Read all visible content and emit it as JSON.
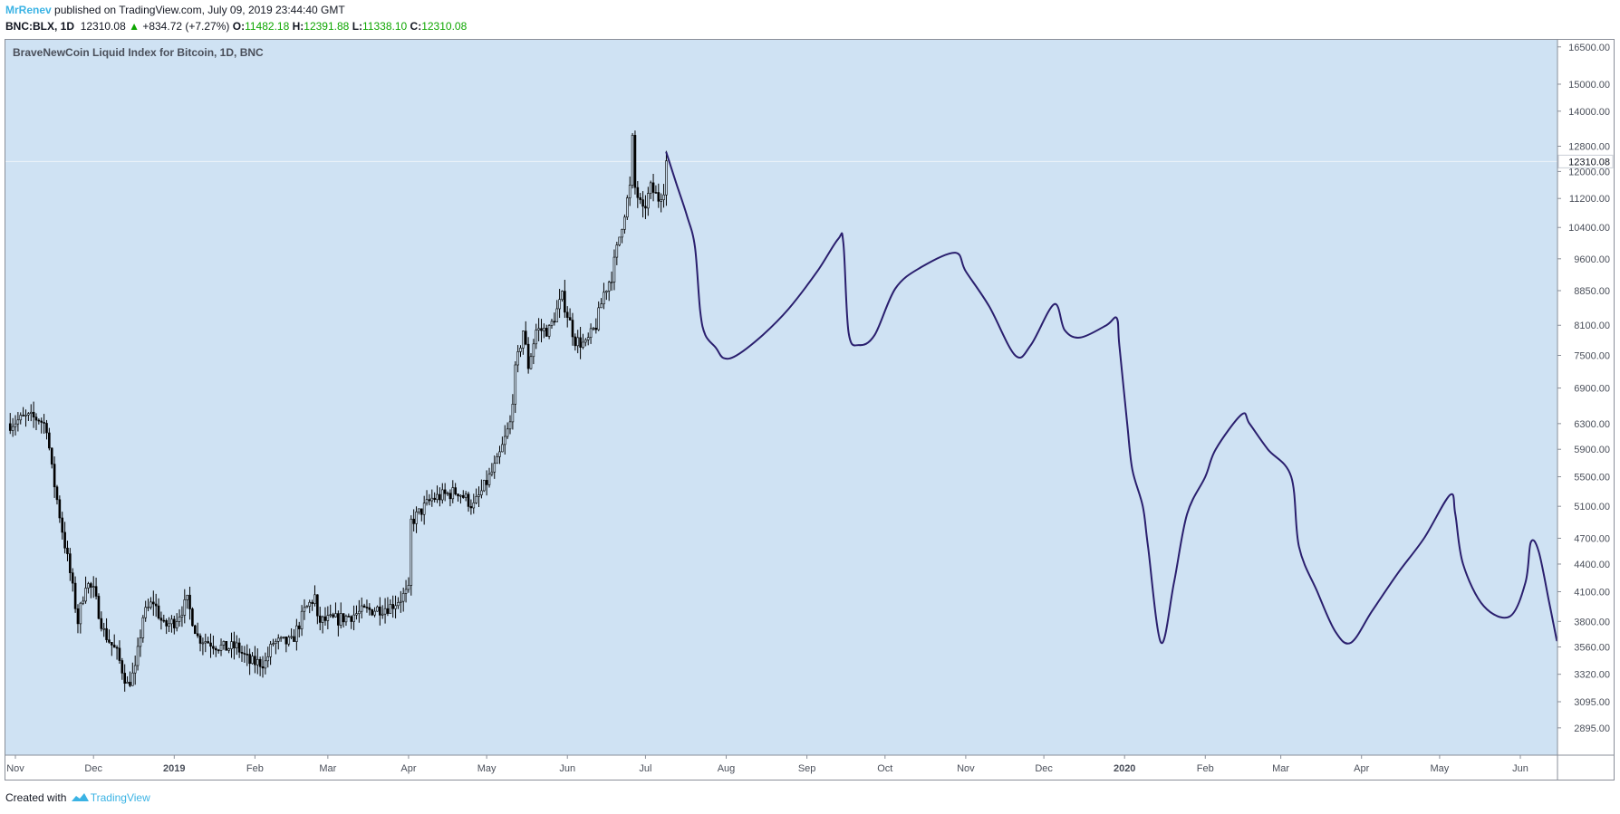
{
  "header": {
    "author": "MrRenev",
    "published_text": "published on TradingView.com, July 09, 2019 23:44:40 GMT",
    "symbol": "BNC:BLX, 1D",
    "last_price": "12310.08",
    "change": "+834.72 (+7.27%)",
    "open_label": "O:",
    "open": "11482.18",
    "high_label": "H:",
    "high": "12391.88",
    "low_label": "L:",
    "low": "11338.10",
    "close_label": "C:",
    "close": "12310.08"
  },
  "footer": {
    "created_with": "Created with",
    "brand": "TradingView",
    "logo_icon": "tradingview-cloud-icon"
  },
  "colors": {
    "chart_background": "#cfe2f3",
    "candle": "#000000",
    "projection_line": "#2a1f6e",
    "up_text": "#0ea600",
    "author": "#3bb3e4"
  },
  "chart_data": {
    "type": "line",
    "title": "BraveNewCoin Liquid Index for Bitcoin, 1D, BNC",
    "scale": "log",
    "ylim": [
      2700,
      16800
    ],
    "y_ticks": [
      "16500.00",
      "15000.00",
      "14000.00",
      "12800.00",
      "12000.00",
      "11200.00",
      "10400.00",
      "9600.00",
      "8850.00",
      "8100.00",
      "7500.00",
      "6900.00",
      "6300.00",
      "5900.00",
      "5500.00",
      "5100.00",
      "4700.00",
      "4400.00",
      "4100.00",
      "3800.00",
      "3560.00",
      "3320.00",
      "3095.00",
      "2895.00"
    ],
    "last_price_label": "12310.08",
    "x_ticks": [
      {
        "label": "Nov",
        "date": "2018-11-01"
      },
      {
        "label": "Dec",
        "date": "2018-12-01"
      },
      {
        "label": "2019",
        "date": "2019-01-01",
        "bold": true
      },
      {
        "label": "Feb",
        "date": "2019-02-01"
      },
      {
        "label": "Mar",
        "date": "2019-03-01"
      },
      {
        "label": "Apr",
        "date": "2019-04-01"
      },
      {
        "label": "May",
        "date": "2019-05-01"
      },
      {
        "label": "Jun",
        "date": "2019-06-01"
      },
      {
        "label": "Jul",
        "date": "2019-07-01"
      },
      {
        "label": "Aug",
        "date": "2019-08-01"
      },
      {
        "label": "Sep",
        "date": "2019-09-01"
      },
      {
        "label": "Oct",
        "date": "2019-10-01"
      },
      {
        "label": "Nov",
        "date": "2019-11-01"
      },
      {
        "label": "Dec",
        "date": "2019-12-01"
      },
      {
        "label": "2020",
        "date": "2020-01-01",
        "bold": true
      },
      {
        "label": "Feb",
        "date": "2020-02-01"
      },
      {
        "label": "Mar",
        "date": "2020-03-01"
      },
      {
        "label": "Apr",
        "date": "2020-04-01"
      },
      {
        "label": "May",
        "date": "2020-05-01"
      },
      {
        "label": "Jun",
        "date": "2020-06-01"
      }
    ],
    "series": [
      {
        "type": "candlestick",
        "approximate_path": [
          [
            "2018-10-30",
            6300
          ],
          [
            "2018-11-05",
            6400
          ],
          [
            "2018-11-10",
            6380
          ],
          [
            "2018-11-13",
            6250
          ],
          [
            "2018-11-15",
            5600
          ],
          [
            "2018-11-19",
            4800
          ],
          [
            "2018-11-22",
            4300
          ],
          [
            "2018-11-25",
            3800
          ],
          [
            "2018-11-28",
            4200
          ],
          [
            "2018-12-01",
            4100
          ],
          [
            "2018-12-05",
            3700
          ],
          [
            "2018-12-10",
            3500
          ],
          [
            "2018-12-14",
            3230
          ],
          [
            "2018-12-17",
            3350
          ],
          [
            "2018-12-20",
            3850
          ],
          [
            "2018-12-24",
            4000
          ],
          [
            "2018-12-28",
            3750
          ],
          [
            "2019-01-01",
            3800
          ],
          [
            "2019-01-06",
            4000
          ],
          [
            "2019-01-10",
            3650
          ],
          [
            "2019-01-15",
            3600
          ],
          [
            "2019-01-20",
            3550
          ],
          [
            "2019-01-25",
            3560
          ],
          [
            "2019-01-30",
            3420
          ],
          [
            "2019-02-05",
            3420
          ],
          [
            "2019-02-08",
            3600
          ],
          [
            "2019-02-15",
            3600
          ],
          [
            "2019-02-20",
            3900
          ],
          [
            "2019-02-24",
            4050
          ],
          [
            "2019-02-25",
            3800
          ],
          [
            "2019-03-05",
            3820
          ],
          [
            "2019-03-15",
            3900
          ],
          [
            "2019-03-25",
            3950
          ],
          [
            "2019-04-01",
            4100
          ],
          [
            "2019-04-02",
            4900
          ],
          [
            "2019-04-10",
            5200
          ],
          [
            "2019-04-20",
            5300
          ],
          [
            "2019-04-26",
            5100
          ],
          [
            "2019-05-05",
            5700
          ],
          [
            "2019-05-10",
            6300
          ],
          [
            "2019-05-12",
            7200
          ],
          [
            "2019-05-15",
            8000
          ],
          [
            "2019-05-17",
            7300
          ],
          [
            "2019-05-20",
            8000
          ],
          [
            "2019-05-25",
            8000
          ],
          [
            "2019-05-30",
            8700
          ],
          [
            "2019-06-04",
            7800
          ],
          [
            "2019-06-08",
            7700
          ],
          [
            "2019-06-12",
            8100
          ],
          [
            "2019-06-15",
            8800
          ],
          [
            "2019-06-18",
            9200
          ],
          [
            "2019-06-22",
            10500
          ],
          [
            "2019-06-25",
            11500
          ],
          [
            "2019-06-26",
            13000
          ],
          [
            "2019-06-27",
            11500
          ],
          [
            "2019-06-30",
            10800
          ],
          [
            "2019-07-03",
            11500
          ],
          [
            "2019-07-06",
            11200
          ],
          [
            "2019-07-08",
            11500
          ],
          [
            "2019-07-09",
            12310
          ]
        ]
      },
      {
        "type": "freehand projection",
        "points": [
          [
            "2019-07-09",
            12600
          ],
          [
            "2019-07-13",
            11600
          ],
          [
            "2019-07-17",
            10700
          ],
          [
            "2019-07-20",
            9900
          ],
          [
            "2019-07-22",
            8400
          ],
          [
            "2019-07-24",
            7900
          ],
          [
            "2019-07-28",
            7650
          ],
          [
            "2019-07-31",
            7450
          ],
          [
            "2019-08-05",
            7500
          ],
          [
            "2019-08-15",
            7900
          ],
          [
            "2019-08-25",
            8450
          ],
          [
            "2019-09-05",
            9300
          ],
          [
            "2019-09-13",
            10100
          ],
          [
            "2019-09-15",
            10000
          ],
          [
            "2019-09-17",
            7950
          ],
          [
            "2019-09-21",
            7700
          ],
          [
            "2019-09-27",
            7900
          ],
          [
            "2019-10-05",
            8900
          ],
          [
            "2019-10-15",
            9400
          ],
          [
            "2019-10-28",
            9750
          ],
          [
            "2019-11-01",
            9300
          ],
          [
            "2019-11-10",
            8500
          ],
          [
            "2019-11-20",
            7500
          ],
          [
            "2019-11-26",
            7700
          ],
          [
            "2019-12-05",
            8550
          ],
          [
            "2019-12-09",
            8000
          ],
          [
            "2019-12-15",
            7850
          ],
          [
            "2019-12-25",
            8100
          ],
          [
            "2019-12-29",
            8250
          ],
          [
            "2019-12-30",
            7700
          ],
          [
            "2020-01-02",
            6300
          ],
          [
            "2020-01-04",
            5600
          ],
          [
            "2020-01-08",
            5100
          ],
          [
            "2020-01-10",
            4600
          ],
          [
            "2020-01-15",
            3600
          ],
          [
            "2020-01-20",
            4200
          ],
          [
            "2020-01-25",
            5000
          ],
          [
            "2020-02-01",
            5500
          ],
          [
            "2020-02-05",
            5900
          ],
          [
            "2020-02-15",
            6450
          ],
          [
            "2020-02-18",
            6300
          ],
          [
            "2020-02-25",
            5900
          ],
          [
            "2020-03-05",
            5500
          ],
          [
            "2020-03-08",
            4600
          ],
          [
            "2020-03-15",
            4100
          ],
          [
            "2020-03-22",
            3700
          ],
          [
            "2020-03-28",
            3600
          ],
          [
            "2020-04-05",
            3900
          ],
          [
            "2020-04-15",
            4300
          ],
          [
            "2020-04-25",
            4700
          ],
          [
            "2020-05-05",
            5250
          ],
          [
            "2020-05-07",
            5000
          ],
          [
            "2020-05-10",
            4400
          ],
          [
            "2020-05-18",
            3950
          ],
          [
            "2020-05-28",
            3850
          ],
          [
            "2020-06-03",
            4200
          ],
          [
            "2020-06-05",
            4650
          ],
          [
            "2020-06-08",
            4550
          ],
          [
            "2020-06-12",
            4000
          ],
          [
            "2020-06-15",
            3620
          ]
        ]
      }
    ],
    "grid": false,
    "legend": "none"
  }
}
